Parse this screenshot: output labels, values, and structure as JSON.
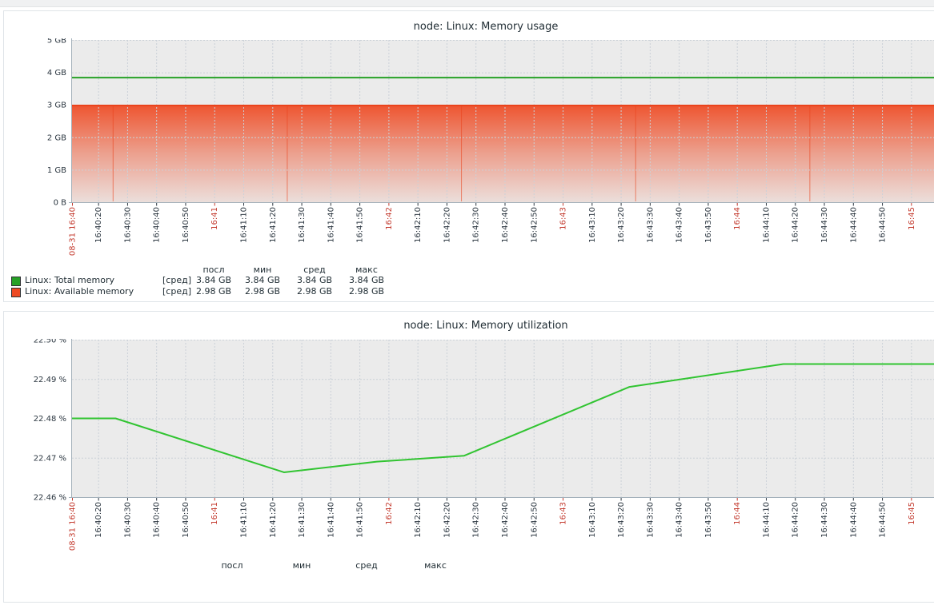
{
  "page": {
    "background": "#ffffff",
    "top_strip_color": "#f0f1f2"
  },
  "colors": {
    "plot_bg": "#ebebeb",
    "grid": "#cbd1d8",
    "axis": "#a3b0ba",
    "tick_text": "#2b3640",
    "tick_text_red": "#c43c30",
    "title_text": "#1f2c33",
    "legend_text": "#1f2c33",
    "total_memory_green": "#26a126",
    "available_memory_red": "#ee4a23",
    "utilization_green": "#31c431"
  },
  "chart_data": {
    "x_axis": {
      "unit": "seconds after 16:40:00 on 08-31",
      "range_s": [
        11,
        317
      ],
      "ticks": [
        {
          "s": 11,
          "label": "08-31 16:40",
          "red": true
        },
        {
          "s": 20,
          "label": "16:40:20"
        },
        {
          "s": 30,
          "label": "16:40:30"
        },
        {
          "s": 40,
          "label": "16:40:40"
        },
        {
          "s": 50,
          "label": "16:40:50"
        },
        {
          "s": 60,
          "label": "16:41",
          "red": true
        },
        {
          "s": 70,
          "label": "16:41:10"
        },
        {
          "s": 80,
          "label": "16:41:20"
        },
        {
          "s": 90,
          "label": "16:41:30"
        },
        {
          "s": 100,
          "label": "16:41:40"
        },
        {
          "s": 110,
          "label": "16:41:50"
        },
        {
          "s": 120,
          "label": "16:42",
          "red": true
        },
        {
          "s": 130,
          "label": "16:42:10"
        },
        {
          "s": 140,
          "label": "16:42:20"
        },
        {
          "s": 150,
          "label": "16:42:30"
        },
        {
          "s": 160,
          "label": "16:42:40"
        },
        {
          "s": 170,
          "label": "16:42:50"
        },
        {
          "s": 180,
          "label": "16:43",
          "red": true
        },
        {
          "s": 190,
          "label": "16:43:10"
        },
        {
          "s": 200,
          "label": "16:43:20"
        },
        {
          "s": 210,
          "label": "16:43:30"
        },
        {
          "s": 220,
          "label": "16:43:40"
        },
        {
          "s": 230,
          "label": "16:43:50"
        },
        {
          "s": 240,
          "label": "16:44",
          "red": true
        },
        {
          "s": 250,
          "label": "16:44:10"
        },
        {
          "s": 260,
          "label": "16:44:20"
        },
        {
          "s": 270,
          "label": "16:44:30"
        },
        {
          "s": 280,
          "label": "16:44:40"
        },
        {
          "s": 290,
          "label": "16:44:50"
        },
        {
          "s": 300,
          "label": "16:45",
          "red": true
        }
      ]
    },
    "charts": [
      {
        "type": "line+area",
        "title": "node: Linux: Memory usage",
        "y_range": [
          0,
          5
        ],
        "y_unit": "GB",
        "y_ticks": [
          {
            "v": 5,
            "label": "5 GB"
          },
          {
            "v": 4,
            "label": "4 GB"
          },
          {
            "v": 3,
            "label": "3 GB"
          },
          {
            "v": 2,
            "label": "2 GB"
          },
          {
            "v": 1,
            "label": "1 GB"
          },
          {
            "v": 0,
            "label": "0 B"
          }
        ],
        "series": [
          {
            "name": "Linux: Total memory",
            "type": "line",
            "color": "#26a126",
            "points": [
              [
                11,
                3.84
              ],
              [
                317,
                3.84
              ]
            ]
          },
          {
            "name": "Linux: Available memory",
            "type": "gradient-area",
            "color": "#ee4a23",
            "edge_color": "#ea431c",
            "points": [
              [
                11,
                2.98
              ],
              [
                317,
                2.98
              ]
            ],
            "seams_s": [
              25,
              85,
              145,
              205,
              265
            ]
          }
        ],
        "legend": {
          "headers": [
            "посл",
            "мин",
            "сред",
            "макс"
          ],
          "rows": [
            {
              "color": "#26a126",
              "name": "Linux: Total memory",
              "func": "[сред]",
              "values": [
                "3.84 GB",
                "3.84 GB",
                "3.84 GB",
                "3.84 GB"
              ]
            },
            {
              "color": "#ee4a23",
              "name": "Linux: Available memory",
              "func": "[сред]",
              "values": [
                "2.98 GB",
                "2.98 GB",
                "2.98 GB",
                "2.98 GB"
              ]
            }
          ]
        }
      },
      {
        "type": "line",
        "title": "node: Linux: Memory utilization",
        "y_range": [
          22.46,
          22.5
        ],
        "y_unit": "%",
        "y_ticks": [
          {
            "v": 22.5,
            "label": "22.50 %"
          },
          {
            "v": 22.49,
            "label": "22.49 %"
          },
          {
            "v": 22.48,
            "label": "22.48 %"
          },
          {
            "v": 22.47,
            "label": "22.47 %"
          },
          {
            "v": 22.46,
            "label": "22.46 %"
          }
        ],
        "series": [
          {
            "name": "Linux: Memory utilization",
            "type": "line",
            "color": "#31c431",
            "points": [
              [
                11,
                22.48
              ],
              [
                26,
                22.48
              ],
              [
                84,
                22.4663
              ],
              [
                116,
                22.469
              ],
              [
                146,
                22.4705
              ],
              [
                203,
                22.488
              ],
              [
                256,
                22.4938
              ],
              [
                317,
                22.4938
              ]
            ]
          }
        ],
        "legend": {
          "headers": [
            "посл",
            "мин",
            "сред",
            "макс"
          ],
          "rows": []
        }
      }
    ]
  }
}
